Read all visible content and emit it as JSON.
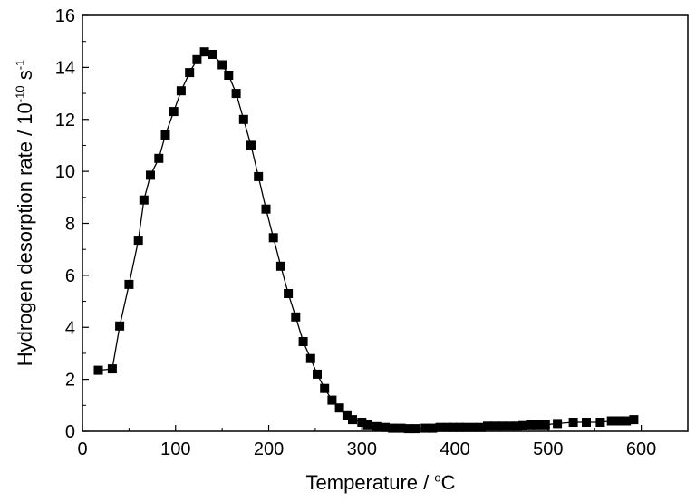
{
  "chart_data": {
    "type": "line",
    "title": "",
    "xlabel": "Temperature / ",
    "xlabel_unit_sup": "o",
    "xlabel_unit": "C",
    "ylabel": "Hydrogen desorption rate / 10",
    "ylabel_exp": "-10",
    "ylabel_unit": " s",
    "ylabel_unit_exp": "-1",
    "xlim": [
      0,
      650
    ],
    "ylim": [
      0,
      16
    ],
    "xticks": [
      0,
      100,
      200,
      300,
      400,
      500,
      600
    ],
    "yticks": [
      0,
      2,
      4,
      6,
      8,
      10,
      12,
      14,
      16
    ],
    "grid": false,
    "marker": "square",
    "line_color": "#000000",
    "marker_color": "#000000",
    "series": [
      {
        "x": [
          17,
          32,
          40,
          50,
          60,
          66,
          73,
          82,
          89,
          98,
          106,
          115,
          123,
          131,
          140,
          150,
          157,
          165,
          173,
          181,
          189,
          197,
          205,
          213,
          221,
          229,
          237,
          245,
          252,
          260,
          268,
          276,
          284,
          290,
          300,
          306,
          316,
          325,
          333,
          342,
          350,
          358,
          368,
          376,
          384,
          392,
          398,
          405,
          411,
          420,
          428,
          435,
          443,
          451,
          459,
          467,
          473,
          481,
          488,
          497,
          510,
          527,
          541,
          556,
          568,
          577,
          584,
          592
        ],
        "y": [
          2.35,
          2.4,
          4.05,
          5.65,
          7.35,
          8.9,
          9.85,
          10.5,
          11.4,
          12.3,
          13.1,
          13.8,
          14.3,
          14.6,
          14.5,
          14.1,
          13.7,
          13.0,
          12.0,
          11.0,
          9.8,
          8.55,
          7.45,
          6.35,
          5.3,
          4.4,
          3.45,
          2.8,
          2.2,
          1.65,
          1.2,
          0.9,
          0.6,
          0.45,
          0.35,
          0.25,
          0.18,
          0.15,
          0.12,
          0.12,
          0.1,
          0.1,
          0.12,
          0.12,
          0.15,
          0.15,
          0.15,
          0.15,
          0.15,
          0.15,
          0.15,
          0.2,
          0.2,
          0.2,
          0.2,
          0.2,
          0.22,
          0.25,
          0.25,
          0.25,
          0.3,
          0.35,
          0.35,
          0.35,
          0.4,
          0.4,
          0.4,
          0.45
        ]
      }
    ]
  }
}
